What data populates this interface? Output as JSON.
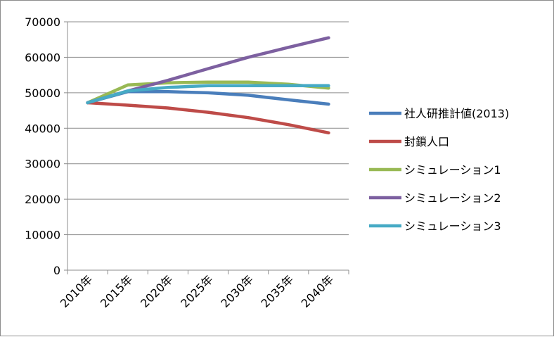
{
  "chart_data": {
    "type": "line",
    "title": "",
    "xlabel": "",
    "ylabel": "",
    "categories": [
      "2010年",
      "2015年",
      "2020年",
      "2025年",
      "2030年",
      "2035年",
      "2040年"
    ],
    "ylim": [
      0,
      70000
    ],
    "yticks": [
      0,
      10000,
      20000,
      30000,
      40000,
      50000,
      60000,
      70000
    ],
    "grid": true,
    "legend": "right",
    "series": [
      {
        "name": "社人研推計値(2013)",
        "color": "#4a7ebb",
        "values": [
          47200,
          50300,
          50300,
          50000,
          49300,
          48000,
          46800
        ]
      },
      {
        "name": "封鎖人口",
        "color": "#be4b48",
        "values": [
          47200,
          46500,
          45700,
          44500,
          43000,
          41000,
          38700
        ]
      },
      {
        "name": "シミュレーション1",
        "color": "#98b954",
        "values": [
          47200,
          52200,
          52800,
          53000,
          53000,
          52400,
          51300
        ]
      },
      {
        "name": "シミュレーション2",
        "color": "#7d60a0",
        "values": [
          47200,
          50500,
          53500,
          56800,
          60000,
          62800,
          65500
        ]
      },
      {
        "name": "シミュレーション3",
        "color": "#46aac5",
        "values": [
          47200,
          50500,
          51500,
          52000,
          52000,
          52000,
          52000
        ]
      }
    ]
  }
}
